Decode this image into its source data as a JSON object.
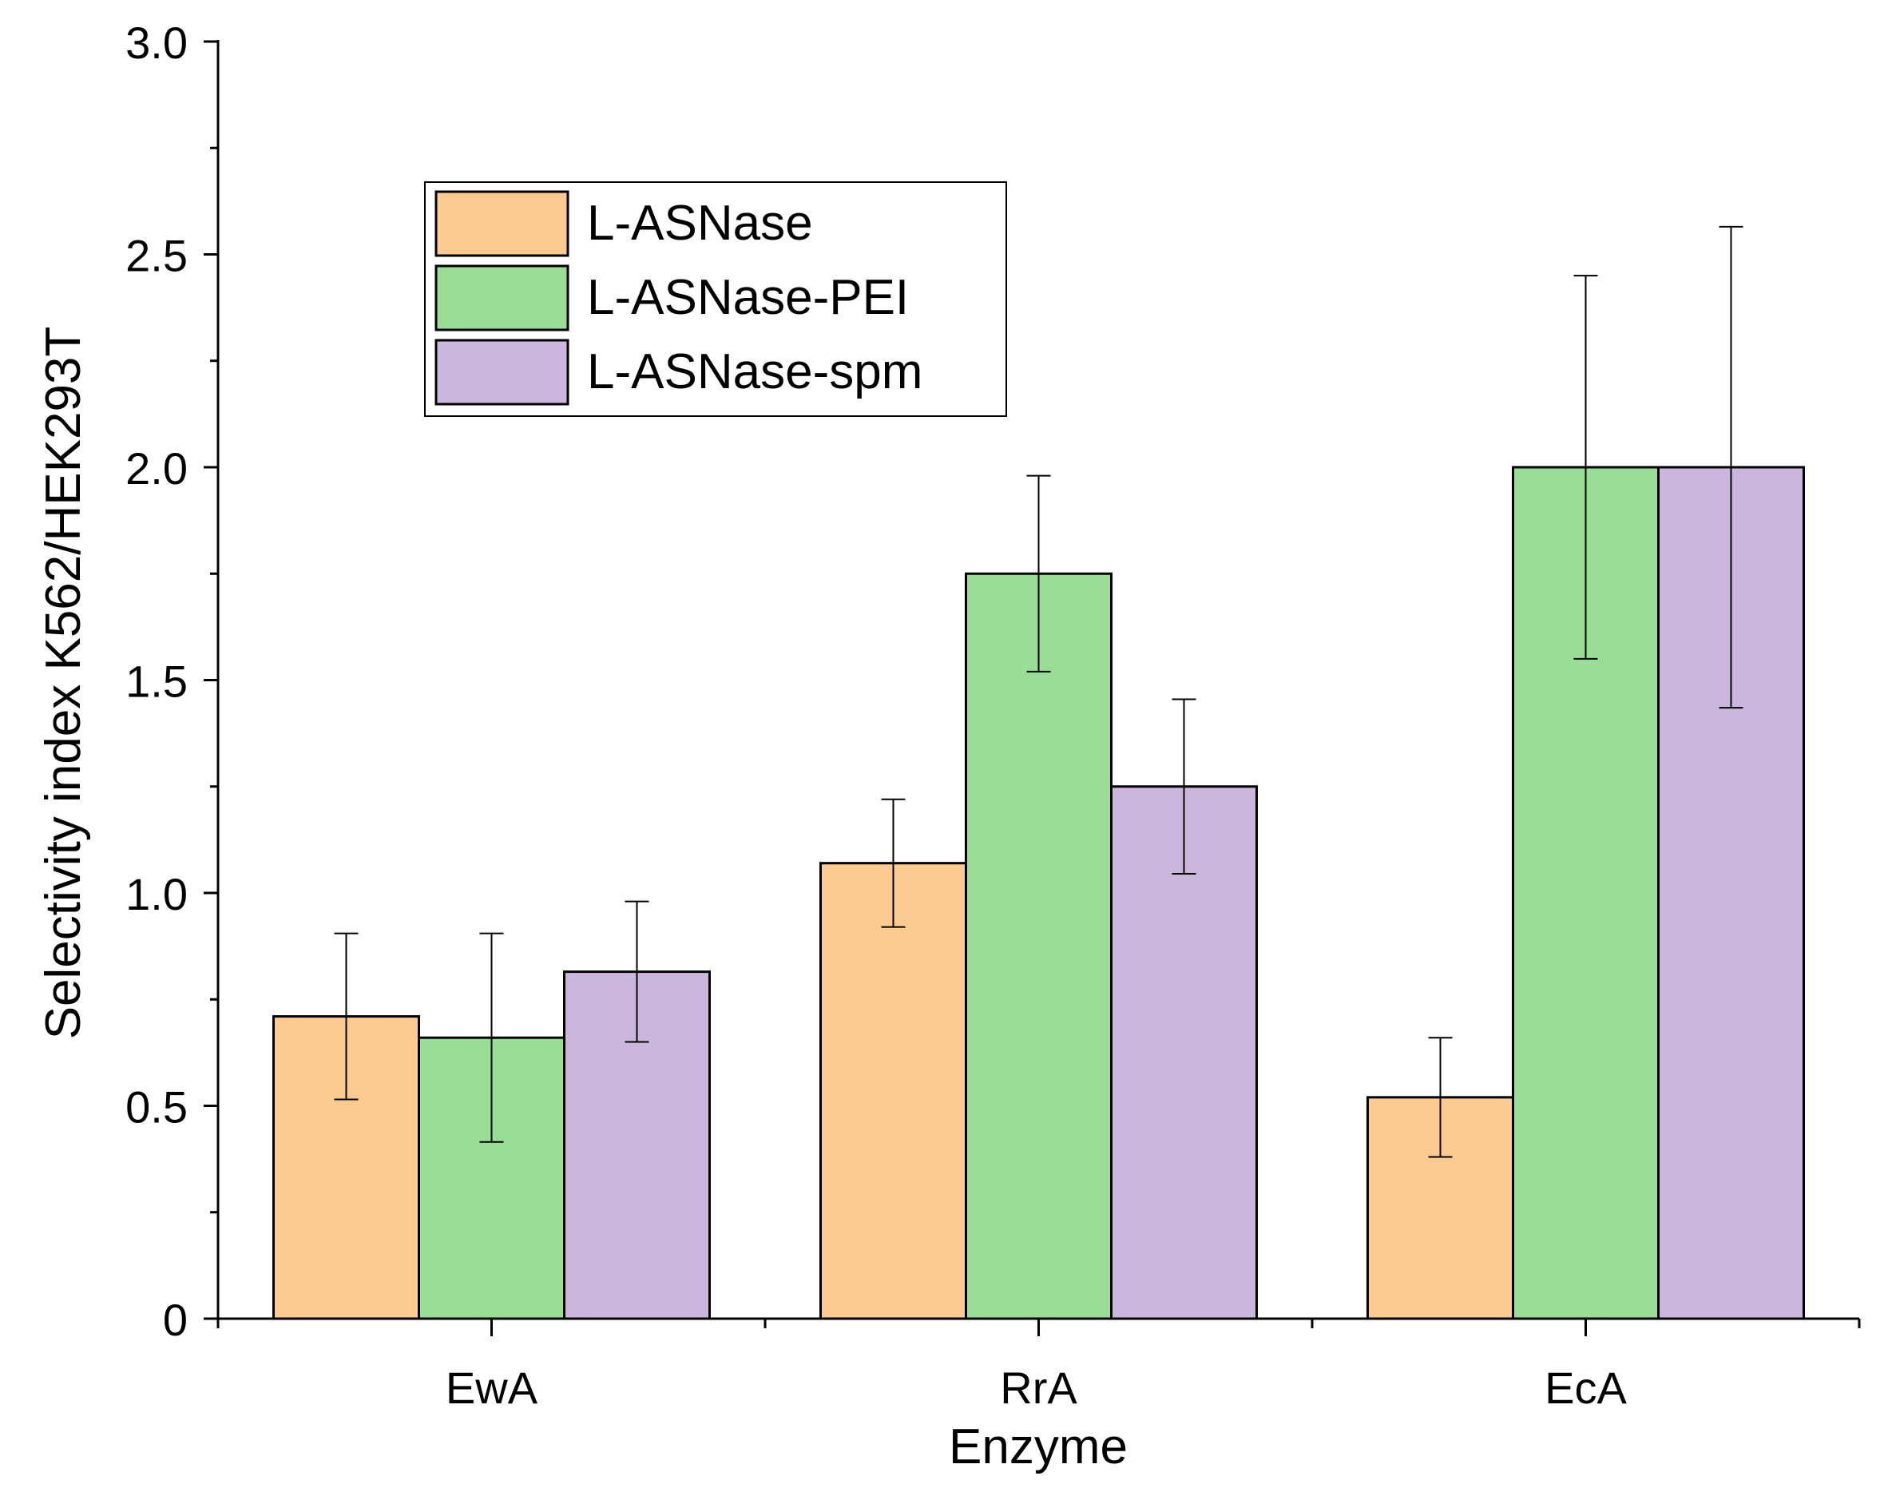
{
  "chart_data": {
    "type": "bar",
    "xlabel": "Enzyme",
    "ylabel": "Selectivity index K562/HEK293T",
    "ylim": [
      0,
      3.0
    ],
    "yticks": [
      "0",
      "0.5",
      "1.0",
      "1.5",
      "2.0",
      "2.5",
      "3.0"
    ],
    "categories": [
      "EwA",
      "RrA",
      "EcA"
    ],
    "series": [
      {
        "name": "L-ASNase",
        "color": "#fdcb92",
        "values": [
          0.71,
          1.07,
          0.52
        ],
        "errors": [
          0.195,
          0.15,
          0.14
        ]
      },
      {
        "name": "L-ASNase-PEI",
        "color": "#99dd96",
        "values": [
          0.66,
          1.75,
          2.0
        ],
        "errors": [
          0.245,
          0.23,
          0.45
        ]
      },
      {
        "name": "L-ASNase-spm",
        "color": "#cbb7dd",
        "values": [
          0.815,
          1.25,
          2.0
        ],
        "errors": [
          0.165,
          0.205,
          0.565
        ]
      }
    ],
    "legend_position": "top-left",
    "grid": false
  }
}
